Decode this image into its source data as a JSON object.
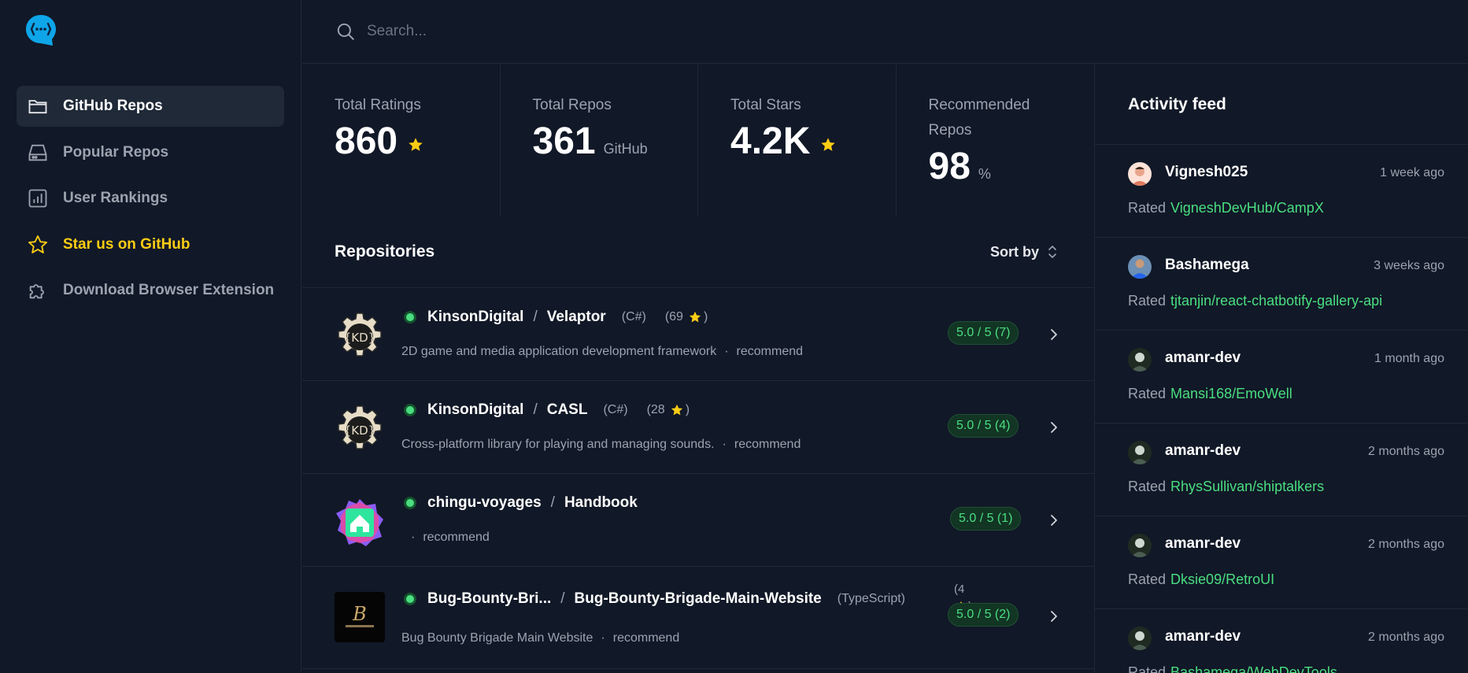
{
  "sidebar": {
    "logo_icon": "chat-bubble-code-icon",
    "items": [
      {
        "label": "GitHub Repos",
        "icon": "folder-icon",
        "active": true
      },
      {
        "label": "Popular Repos",
        "icon": "drive-icon"
      },
      {
        "label": "User Rankings",
        "icon": "bar-chart-icon"
      },
      {
        "label": "Star us on GitHub",
        "icon": "star-icon"
      },
      {
        "label": "Download Browser Extension",
        "icon": "puzzle-icon"
      }
    ]
  },
  "search": {
    "placeholder": "Search..."
  },
  "stats": [
    {
      "label": "Total Ratings",
      "value": "860",
      "unit": ""
    },
    {
      "label": "Total Repos",
      "value": "361",
      "unit": "GitHub"
    },
    {
      "label": "Total Stars",
      "value": "4.2K",
      "unit": ""
    },
    {
      "label": "Recommended Repos",
      "value": "98",
      "unit": "%"
    }
  ],
  "repos": {
    "title": "Repositories",
    "sort_label": "Sort by",
    "items": [
      {
        "owner": "KinsonDigital",
        "name": "Velaptor",
        "lang": "(C#)",
        "stars": "(69",
        "stars_close": ")",
        "desc": "2D game and media application development framework",
        "tag": "recommend",
        "rating": "5.0 / 5 (7)"
      },
      {
        "owner": "KinsonDigital",
        "name": "CASL",
        "lang": "(C#)",
        "stars": "(28",
        "stars_close": ")",
        "desc": "Cross-platform library for playing and managing sounds.",
        "tag": "recommend",
        "rating": "5.0 / 5 (4)"
      },
      {
        "owner": "chingu-voyages",
        "name": "Handbook",
        "lang": "",
        "stars": "",
        "stars_close": "",
        "desc": "",
        "tag": "recommend",
        "rating": "5.0 / 5 (1)"
      },
      {
        "owner": "Bug-Bounty-Bri...",
        "name": "Bug-Bounty-Brigade-Main-Website",
        "lang": "(TypeScript)",
        "stars": "(4",
        "stars_close": ")",
        "desc": "Bug Bounty Brigade Main Website",
        "tag": "recommend",
        "rating": "5.0 / 5 (2)"
      }
    ]
  },
  "feed": {
    "title": "Activity feed",
    "rated_prefix": "Rated",
    "items": [
      {
        "user": "Vignesh025",
        "time": "1 week ago",
        "repo": "VigneshDevHub/CampX"
      },
      {
        "user": "Bashamega",
        "time": "3 weeks ago",
        "repo": "tjtanjin/react-chatbotify-gallery-api"
      },
      {
        "user": "amanr-dev",
        "time": "1 month ago",
        "repo": "Mansi168/EmoWell"
      },
      {
        "user": "amanr-dev",
        "time": "2 months ago",
        "repo": "RhysSullivan/shiptalkers"
      },
      {
        "user": "amanr-dev",
        "time": "2 months ago",
        "repo": "Dksie09/RetroUI"
      },
      {
        "user": "amanr-dev",
        "time": "2 months ago",
        "repo": "Bashamega/WebDevTools"
      }
    ]
  },
  "colors": {
    "accent_green": "#4ade80",
    "star_yellow": "#facc15",
    "bg": "#111827"
  }
}
